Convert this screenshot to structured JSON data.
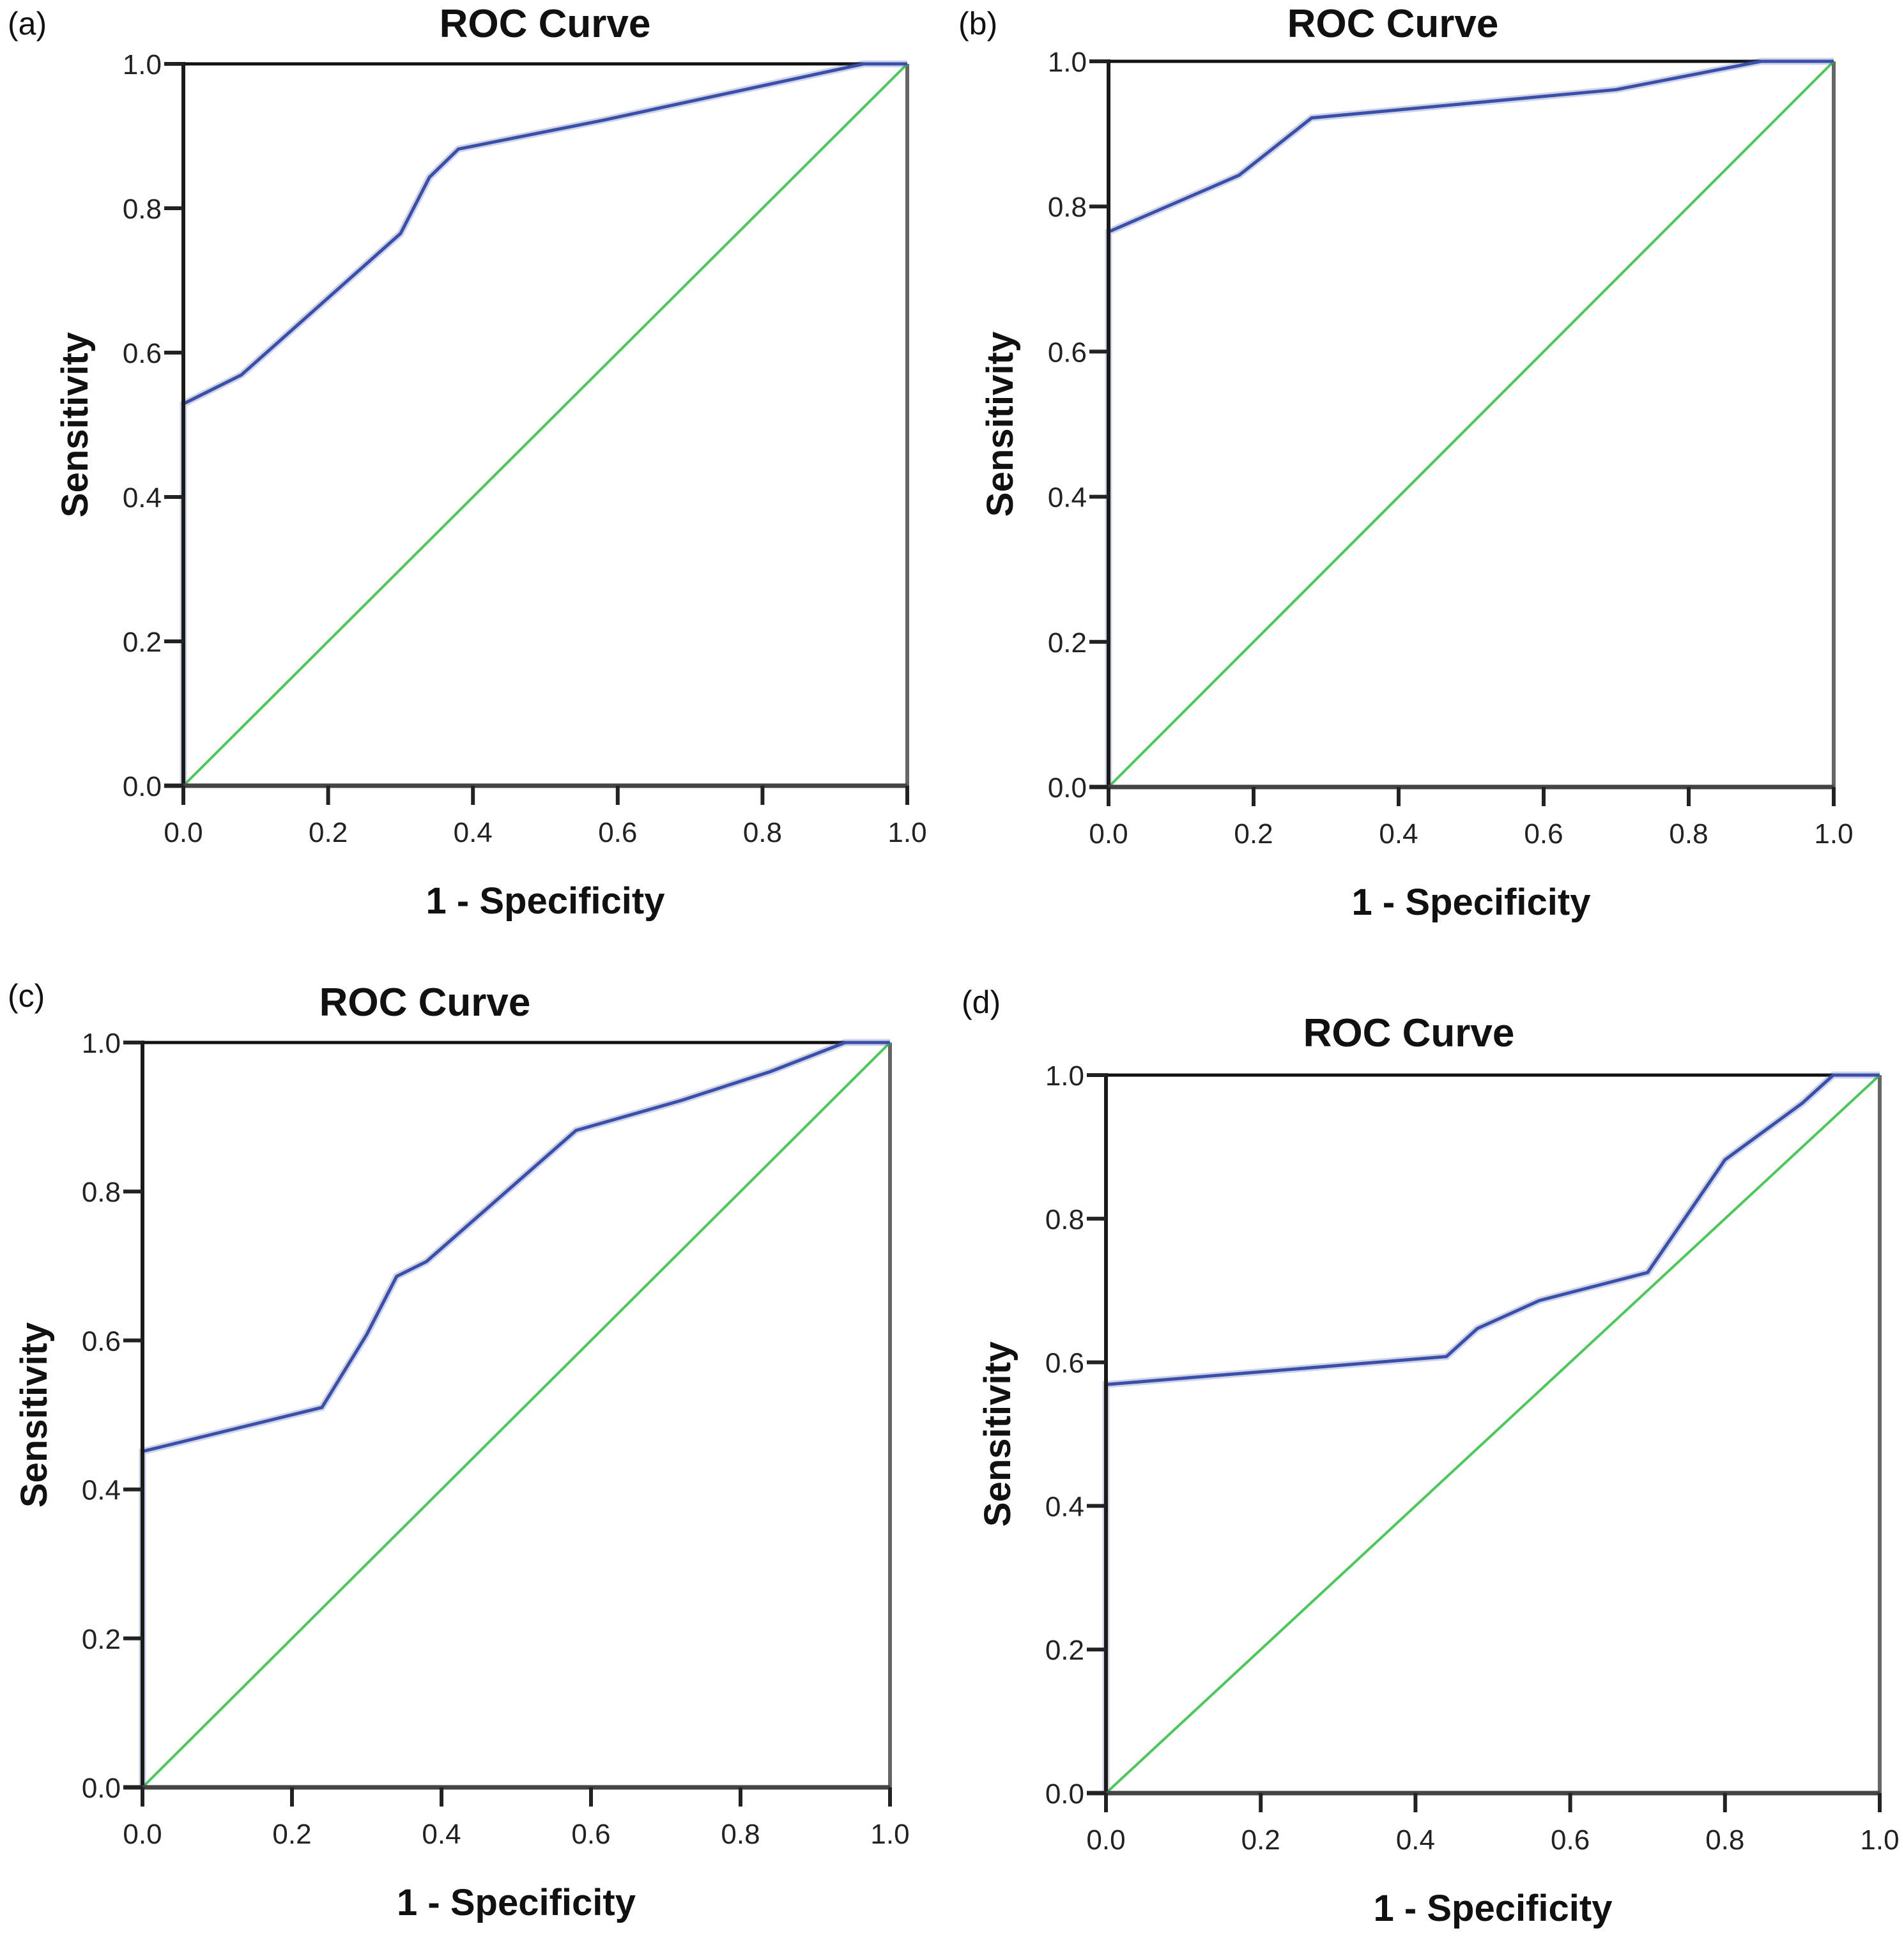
{
  "figure": {
    "panels": [
      {
        "letter": "(a)"
      },
      {
        "letter": "(b)"
      },
      {
        "letter": "(c)"
      },
      {
        "letter": "(d)"
      }
    ]
  },
  "colors": {
    "roc_curve": "#3a4fa8",
    "reference_line": "#4cc85a",
    "axis": "#1a1a1a"
  },
  "chart_data": [
    {
      "panel": "(a)",
      "type": "line",
      "title": "ROC Curve",
      "xlabel": "1 - Specificity",
      "ylabel": "Sensitivity",
      "xlim": [
        0,
        1
      ],
      "ylim": [
        0,
        1
      ],
      "x_ticks": [
        "0.0",
        "0.2",
        "0.4",
        "0.6",
        "0.8",
        "1.0"
      ],
      "y_ticks": [
        "0.0",
        "0.2",
        "0.4",
        "0.6",
        "0.8",
        "1.0"
      ],
      "grid": false,
      "series": [
        {
          "name": "ROC curve",
          "step": true,
          "x": [
            0,
            0,
            0.08,
            0.3,
            0.34,
            0.38,
            0.58,
            0.94,
            1.0
          ],
          "y": [
            0,
            0.529,
            0.569,
            0.765,
            0.843,
            0.882,
            0.922,
            1.0,
            1.0
          ]
        },
        {
          "name": "Reference line",
          "x": [
            0,
            1
          ],
          "y": [
            0,
            1
          ]
        }
      ]
    },
    {
      "panel": "(b)",
      "type": "line",
      "title": "ROC Curve",
      "xlabel": "1 - Specificity",
      "ylabel": "Sensitivity",
      "xlim": [
        0,
        1
      ],
      "ylim": [
        0,
        1
      ],
      "x_ticks": [
        "0.0",
        "0.2",
        "0.4",
        "0.6",
        "0.8",
        "1.0"
      ],
      "y_ticks": [
        "0.0",
        "0.2",
        "0.4",
        "0.6",
        "0.8",
        "1.0"
      ],
      "grid": false,
      "series": [
        {
          "name": "ROC curve",
          "step": true,
          "x": [
            0,
            0,
            0.18,
            0.28,
            0.7,
            0.9,
            1.0
          ],
          "y": [
            0,
            0.765,
            0.843,
            0.922,
            0.961,
            1.0,
            1.0
          ]
        },
        {
          "name": "Reference line",
          "x": [
            0,
            1
          ],
          "y": [
            0,
            1
          ]
        }
      ]
    },
    {
      "panel": "(c)",
      "type": "line",
      "title": "ROC Curve",
      "xlabel": "1 - Specificity",
      "ylabel": "Sensitivity",
      "xlim": [
        0,
        1
      ],
      "ylim": [
        0,
        1
      ],
      "x_ticks": [
        "0.0",
        "0.2",
        "0.4",
        "0.6",
        "0.8",
        "1.0"
      ],
      "y_ticks": [
        "0.0",
        "0.2",
        "0.4",
        "0.6",
        "0.8",
        "1.0"
      ],
      "grid": false,
      "series": [
        {
          "name": "ROC curve",
          "step": true,
          "x": [
            0,
            0,
            0.24,
            0.3,
            0.34,
            0.38,
            0.58,
            0.72,
            0.84,
            0.94,
            1.0
          ],
          "y": [
            0,
            0.451,
            0.51,
            0.608,
            0.686,
            0.706,
            0.882,
            0.922,
            0.961,
            1.0,
            1.0
          ]
        },
        {
          "name": "Reference line",
          "x": [
            0,
            1
          ],
          "y": [
            0,
            1
          ]
        }
      ]
    },
    {
      "panel": "(d)",
      "type": "line",
      "title": "ROC Curve",
      "xlabel": "1 - Specificity",
      "ylabel": "Sensitivity",
      "xlim": [
        0,
        1
      ],
      "ylim": [
        0,
        1
      ],
      "x_ticks": [
        "0.0",
        "0.2",
        "0.4",
        "0.6",
        "0.8",
        "1.0"
      ],
      "y_ticks": [
        "0.0",
        "0.2",
        "0.4",
        "0.6",
        "0.8",
        "1.0"
      ],
      "grid": false,
      "series": [
        {
          "name": "ROC curve",
          "step": true,
          "x": [
            0,
            0,
            0.44,
            0.48,
            0.56,
            0.7,
            0.8,
            0.9,
            0.94,
            1.0
          ],
          "y": [
            0,
            0.569,
            0.608,
            0.647,
            0.686,
            0.725,
            0.882,
            0.961,
            1.0,
            1.0
          ]
        },
        {
          "name": "Reference line",
          "x": [
            0,
            1
          ],
          "y": [
            0,
            1
          ]
        }
      ]
    }
  ]
}
